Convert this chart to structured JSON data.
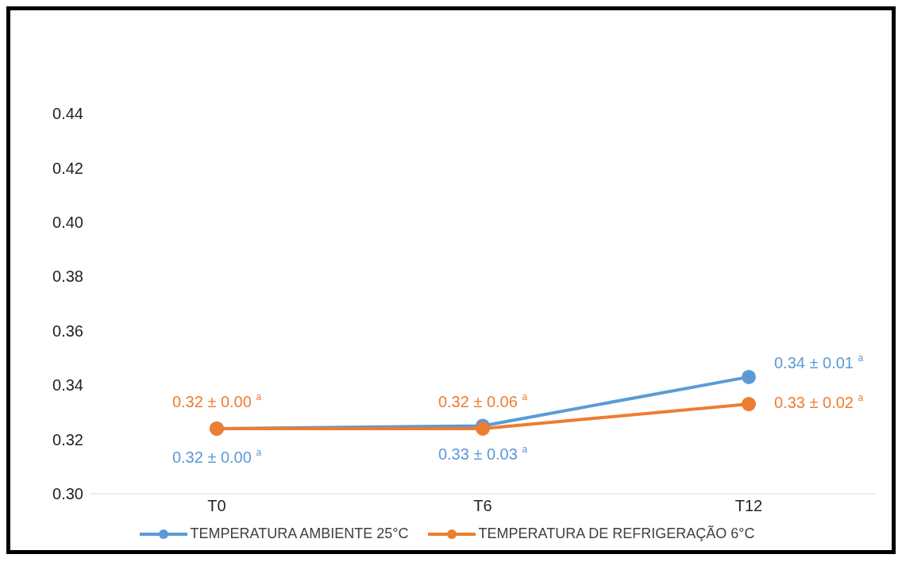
{
  "chart_data": {
    "type": "line",
    "categories": [
      "T0",
      "T6",
      "T12"
    ],
    "series": [
      {
        "name": "TEMPERATURA AMBIENTE 25°C",
        "color": "#5b9bd5",
        "values": [
          0.324,
          0.325,
          0.343
        ],
        "value_labels": [
          "0.32 ± 0.00 $^{a}$",
          "0.33 ± 0.03 $^{a}$",
          "0.34 ± 0.01 $^{a}$"
        ]
      },
      {
        "name": "TEMPERATURA DE REFRIGERAÇÃO 6°C",
        "color": "#ed7d31",
        "values": [
          0.324,
          0.324,
          0.333
        ],
        "value_labels": [
          "0.32 ± 0.00 $^{a}$",
          "0.32 ± 0.06 $^{a}$",
          "0.33 ± 0.02 $^{a}$"
        ]
      }
    ],
    "ylim": [
      0.3,
      0.44
    ],
    "yticks": [
      {
        "value": 0.3,
        "label": "0.30"
      },
      {
        "value": 0.32,
        "label": "0.32"
      },
      {
        "value": 0.34,
        "label": "0.34"
      },
      {
        "value": 0.36,
        "label": "0.36"
      },
      {
        "value": 0.38,
        "label": "0.38"
      },
      {
        "value": 0.4,
        "label": "0.40"
      },
      {
        "value": 0.42,
        "label": "0.42"
      },
      {
        "value": 0.44,
        "label": "0.44"
      }
    ],
    "grid": false,
    "legend": "bottom",
    "marker": "circle",
    "line_style": "solid"
  }
}
